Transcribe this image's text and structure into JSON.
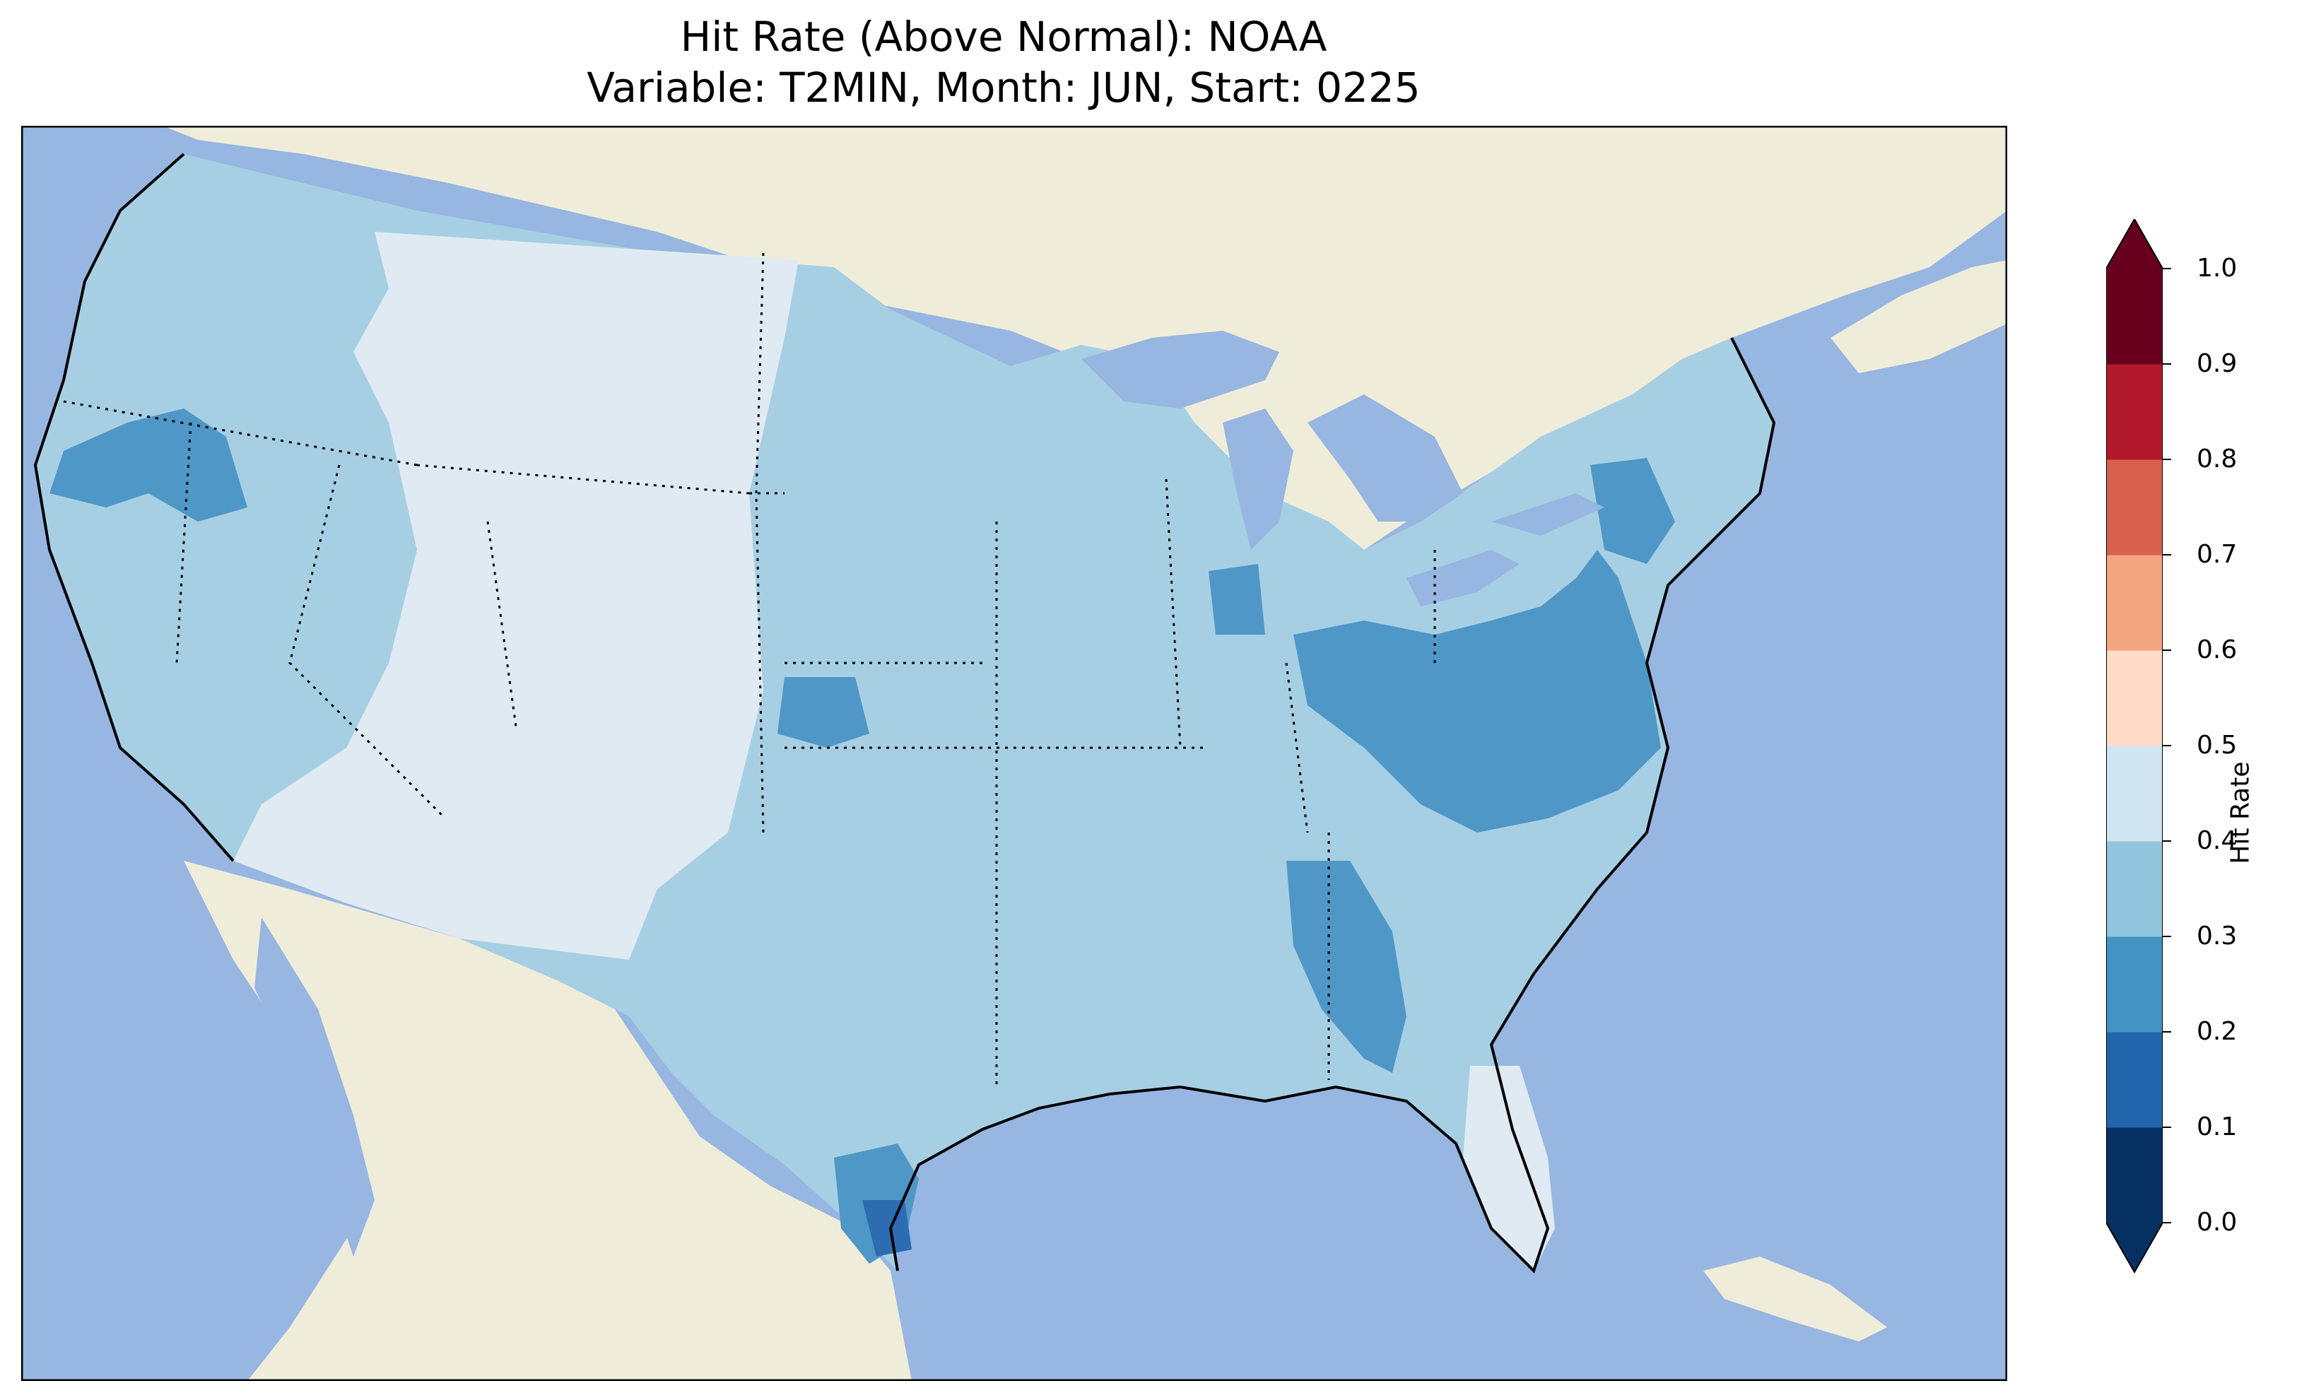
{
  "title": {
    "line1": "Hit Rate (Above Normal): NOAA",
    "line2": "Variable: T2MIN, Month: JUN, Start: 0225"
  },
  "colorbar": {
    "label": "Hit Rate",
    "ticks": [
      "0.0",
      "0.1",
      "0.2",
      "0.3",
      "0.4",
      "0.5",
      "0.6",
      "0.7",
      "0.8",
      "0.9",
      "1.0"
    ],
    "bins": [
      {
        "range": [
          0.0,
          0.1
        ],
        "color": "#053061"
      },
      {
        "range": [
          0.1,
          0.2
        ],
        "color": "#2166ac"
      },
      {
        "range": [
          0.2,
          0.3
        ],
        "color": "#4393c3"
      },
      {
        "range": [
          0.3,
          0.4
        ],
        "color": "#92c5de"
      },
      {
        "range": [
          0.4,
          0.5
        ],
        "color": "#d1e5f0"
      },
      {
        "range": [
          0.5,
          0.6
        ],
        "color": "#fddbc7"
      },
      {
        "range": [
          0.6,
          0.7
        ],
        "color": "#f4a582"
      },
      {
        "range": [
          0.7,
          0.8
        ],
        "color": "#d6604d"
      },
      {
        "range": [
          0.8,
          0.9
        ],
        "color": "#b2182b"
      },
      {
        "range": [
          0.9,
          1.0
        ],
        "color": "#67001f"
      }
    ],
    "under_color": "#053061",
    "over_color": "#67001f"
  },
  "map": {
    "ocean_color": "#97b6e1",
    "land_color": "#efedda",
    "regions": [
      {
        "name": "West Coast / Pacific Northwest",
        "hit_rate_bin": "0.3-0.4"
      },
      {
        "name": "Northern Rockies / Great Basin / Southwest",
        "hit_rate_bin": "0.4-0.5"
      },
      {
        "name": "Oregon interior",
        "hit_rate_bin": "0.2-0.3"
      },
      {
        "name": "Great Plains / Midwest / Northeast",
        "hit_rate_bin": "0.3-0.4"
      },
      {
        "name": "Kansas",
        "hit_rate_bin": "0.2-0.3"
      },
      {
        "name": "Ohio Valley / Virginia / Carolinas",
        "hit_rate_bin": "0.2-0.3"
      },
      {
        "name": "Alabama / Florida panhandle",
        "hit_rate_bin": "0.2-0.3"
      },
      {
        "name": "South Texas coast",
        "hit_rate_bin": "0.2-0.3"
      },
      {
        "name": "Lower Rio Grande",
        "hit_rate_bin": "0.1-0.2"
      },
      {
        "name": "Florida peninsula / Gulf coast",
        "hit_rate_bin": "0.4-0.5"
      }
    ]
  }
}
